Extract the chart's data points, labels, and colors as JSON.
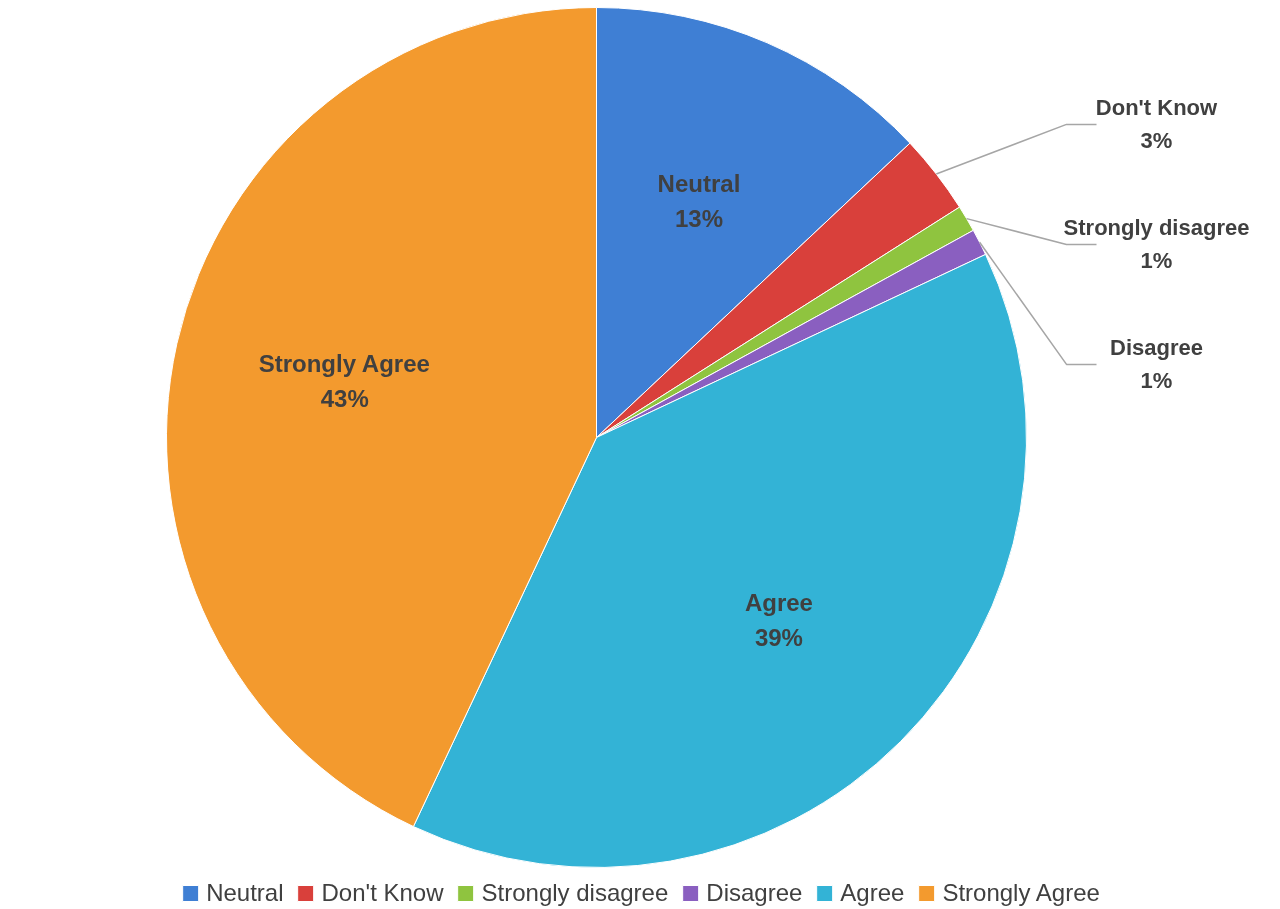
{
  "chart_data": {
    "type": "pie",
    "categories": [
      "Neutral",
      "Don't Know",
      "Strongly disagree",
      "Disagree",
      "Agree",
      "Strongly Agree"
    ],
    "values": [
      13,
      3,
      1,
      1,
      39,
      43
    ],
    "value_labels": [
      "13%",
      "3%",
      "1%",
      "1%",
      "39%",
      "43%"
    ],
    "colors": [
      "#3f7fd4",
      "#d9403b",
      "#8fc43f",
      "#8a5fc0",
      "#33b3d6",
      "#f39a2e"
    ],
    "legend": "bottom"
  }
}
